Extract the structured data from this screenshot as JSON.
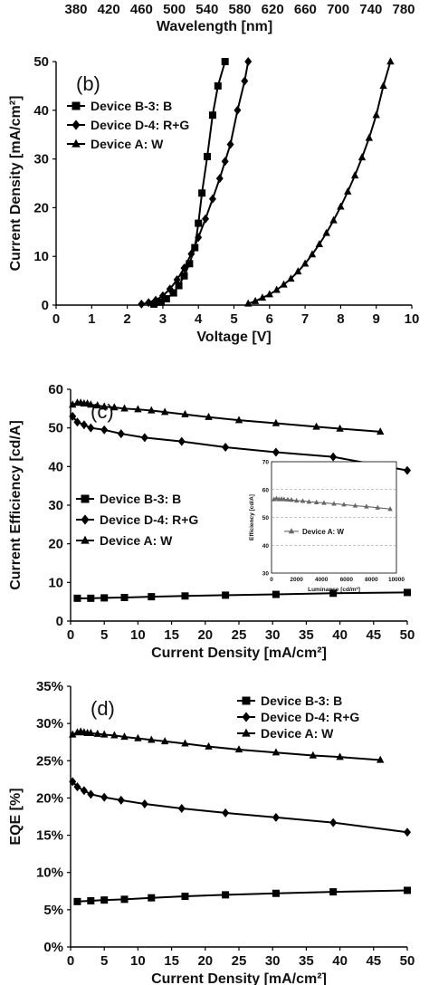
{
  "chart_data": [
    {
      "id": "b",
      "type": "line",
      "panel_label": "(b)",
      "xlabel": "Voltage [V]",
      "ylabel": "Current Density [mA/cm²]",
      "xlim": [
        0,
        10
      ],
      "ylim": [
        0,
        50
      ],
      "x_ticks": [
        0,
        1,
        2,
        3,
        4,
        5,
        6,
        7,
        8,
        9,
        10
      ],
      "y_ticks": [
        0,
        10,
        20,
        30,
        40,
        50
      ],
      "top_axis": {
        "label": "Wavelength [nm]",
        "ticks": [
          380,
          420,
          460,
          500,
          540,
          580,
          620,
          660,
          700,
          740,
          780
        ]
      },
      "legend_position": "top-left",
      "grid": false,
      "series": [
        {
          "name": "Device B-3: B",
          "marker": "square",
          "x": [
            2.75,
            2.95,
            3.1,
            3.3,
            3.45,
            3.6,
            3.75,
            3.9,
            4.0,
            4.1,
            4.25,
            4.4,
            4.55,
            4.75
          ],
          "y": [
            0.2,
            0.6,
            1.3,
            2.5,
            4.0,
            6.0,
            8.5,
            11.8,
            16.8,
            23.0,
            30.5,
            39.0,
            45.0,
            50.0
          ]
        },
        {
          "name": "Device D-4: R+G",
          "marker": "diamond",
          "x": [
            2.4,
            2.6,
            2.8,
            3.0,
            3.2,
            3.4,
            3.6,
            3.8,
            4.0,
            4.2,
            4.4,
            4.6,
            4.75,
            4.9,
            5.1,
            5.3,
            5.4
          ],
          "y": [
            0.2,
            0.5,
            1.0,
            1.9,
            3.3,
            5.2,
            7.6,
            10.5,
            13.9,
            17.7,
            21.8,
            26.0,
            29.5,
            33.0,
            40.0,
            46.0,
            50.0
          ]
        },
        {
          "name": "Device A: W",
          "marker": "triangle",
          "x": [
            5.4,
            5.6,
            5.8,
            6.0,
            6.2,
            6.4,
            6.6,
            6.8,
            7.0,
            7.2,
            7.4,
            7.6,
            7.8,
            8.0,
            8.2,
            8.4,
            8.6,
            8.8,
            9.0,
            9.2,
            9.4
          ],
          "y": [
            0.3,
            0.8,
            1.5,
            2.2,
            3.1,
            4.2,
            5.4,
            6.9,
            8.5,
            10.4,
            12.5,
            14.8,
            17.4,
            20.2,
            23.3,
            26.6,
            30.3,
            34.3,
            39.0,
            45.0,
            50.0
          ]
        }
      ]
    },
    {
      "id": "c",
      "type": "line",
      "panel_label": "(c)",
      "xlabel": "Current Density [mA/cm²]",
      "ylabel": "Current Efficiency [cd/A]",
      "xlim": [
        0,
        50
      ],
      "ylim": [
        0,
        60
      ],
      "x_ticks": [
        0,
        5,
        10,
        15,
        20,
        25,
        30,
        35,
        40,
        45,
        50
      ],
      "y_ticks": [
        0,
        10,
        20,
        30,
        40,
        50,
        60
      ],
      "legend_position": "center-left",
      "grid": false,
      "series": [
        {
          "name": "Device B-3: B",
          "marker": "square",
          "x": [
            1,
            3,
            5,
            8,
            12,
            17,
            23,
            30.5,
            39,
            50
          ],
          "y": [
            5.9,
            5.9,
            6.0,
            6.1,
            6.3,
            6.5,
            6.7,
            6.9,
            7.2,
            7.4
          ]
        },
        {
          "name": "Device D-4: R+G",
          "marker": "diamond",
          "x": [
            0.3,
            1,
            2,
            3,
            5,
            7.5,
            11,
            16.5,
            23,
            30.5,
            39,
            50
          ],
          "y": [
            53.0,
            51.5,
            50.8,
            50.0,
            49.5,
            48.5,
            47.5,
            46.5,
            45.0,
            43.7,
            42.5,
            39.0
          ]
        },
        {
          "name": "Device A: W",
          "marker": "triangle",
          "x": [
            0.3,
            1,
            1.5,
            2,
            2.5,
            3,
            4,
            5,
            6.5,
            8,
            10,
            12,
            14,
            17,
            20.5,
            25,
            30.5,
            36.5,
            40,
            46
          ],
          "y": [
            56.0,
            56.5,
            56.5,
            56.3,
            56.3,
            56.0,
            55.8,
            55.5,
            55.3,
            55.0,
            54.8,
            54.5,
            54.1,
            53.5,
            52.8,
            52.0,
            51.2,
            50.3,
            49.8,
            49.0
          ]
        }
      ],
      "inset": {
        "type": "scatter",
        "xlabel": "Luminance [cd/m²]",
        "ylabel": "Efficiency [cd/A]",
        "xlim": [
          0,
          10000
        ],
        "ylim": [
          30,
          70
        ],
        "x_ticks": [
          0,
          2000,
          4000,
          6000,
          8000,
          10000
        ],
        "y_ticks": [
          30,
          40,
          50,
          60,
          70
        ],
        "grid": true,
        "series": [
          {
            "name": "Device A: W",
            "marker": "triangle",
            "x": [
              200,
              400,
              600,
              800,
              1000,
              1300,
              1600,
              2000,
              2500,
              3000,
              3600,
              4200,
              5000,
              5800,
              6700,
              7600,
              8500,
              9500
            ],
            "y": [
              56.5,
              56.8,
              56.5,
              56.6,
              56.5,
              56.4,
              56.3,
              56.0,
              55.9,
              55.6,
              55.4,
              55.2,
              54.9,
              54.6,
              54.2,
              53.9,
              53.5,
              53.0
            ]
          }
        ]
      }
    },
    {
      "id": "d",
      "type": "line",
      "panel_label": "(d)",
      "xlabel": "Current Density [mA/cm²]",
      "ylabel": "EQE [%]",
      "xlim": [
        0,
        50
      ],
      "ylim": [
        0,
        35
      ],
      "x_ticks": [
        0,
        5,
        10,
        15,
        20,
        25,
        30,
        35,
        40,
        45,
        50
      ],
      "y_ticks": [
        "0%",
        "5%",
        "10%",
        "15%",
        "20%",
        "25%",
        "30%",
        "35%"
      ],
      "legend_position": "top-right",
      "grid": false,
      "series": [
        {
          "name": "Device B-3: B",
          "marker": "square",
          "x": [
            1,
            3,
            5,
            8,
            12,
            17,
            23,
            30.5,
            39,
            50
          ],
          "y": [
            6.1,
            6.2,
            6.3,
            6.4,
            6.6,
            6.8,
            7.0,
            7.2,
            7.4,
            7.6
          ]
        },
        {
          "name": "Device D-4: R+G",
          "marker": "diamond",
          "x": [
            0.3,
            1,
            2,
            3,
            5,
            7.5,
            11,
            16.5,
            23,
            30.5,
            39,
            50
          ],
          "y": [
            22.2,
            21.5,
            21.0,
            20.5,
            20.1,
            19.7,
            19.2,
            18.6,
            18.0,
            17.4,
            16.7,
            15.4
          ]
        },
        {
          "name": "Device A: W",
          "marker": "triangle",
          "x": [
            0.3,
            1,
            1.5,
            2,
            2.5,
            3,
            4,
            5,
            6.5,
            8,
            10,
            12,
            14,
            17,
            20.5,
            25,
            30.5,
            36,
            40,
            46
          ],
          "y": [
            28.5,
            28.8,
            28.9,
            28.8,
            28.7,
            28.7,
            28.6,
            28.5,
            28.4,
            28.2,
            28.0,
            27.8,
            27.6,
            27.3,
            26.9,
            26.5,
            26.1,
            25.7,
            25.5,
            25.1
          ]
        }
      ]
    }
  ]
}
